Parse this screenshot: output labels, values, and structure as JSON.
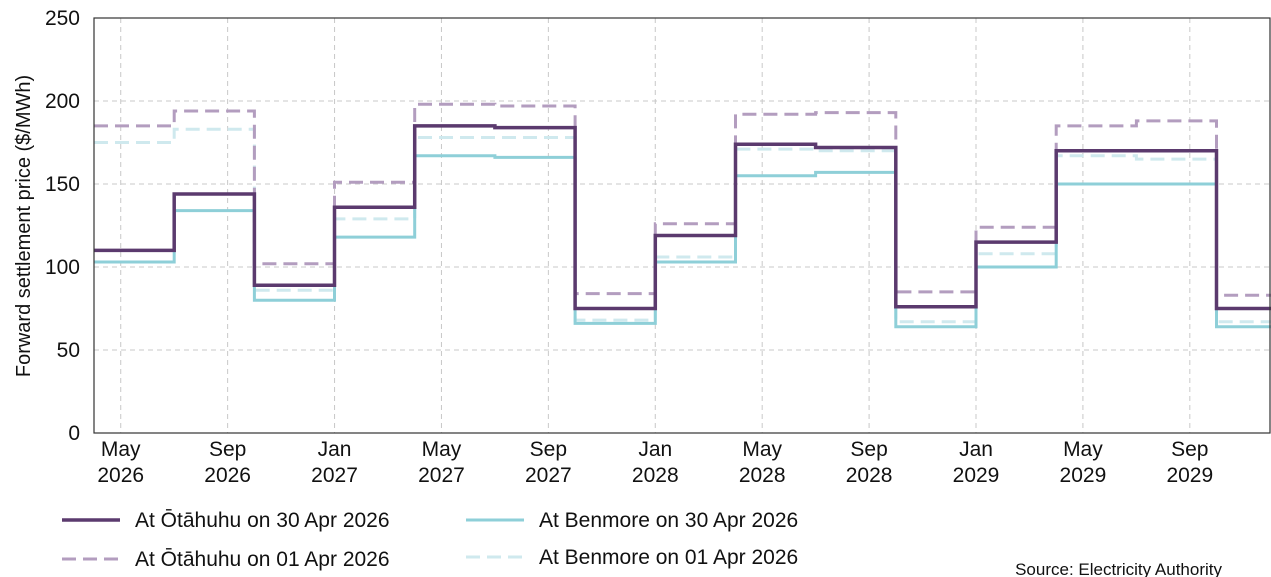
{
  "chart_data": {
    "type": "line",
    "step": true,
    "title": "",
    "xlabel": "",
    "ylabel": "Forward settlement price ($/MWh)",
    "ylim": [
      0,
      250
    ],
    "yticks": [
      0,
      50,
      100,
      150,
      200,
      250
    ],
    "x_range": [
      "2026-04",
      "2029-12"
    ],
    "x_ticks": [
      {
        "month": "2026-05",
        "line1": "May",
        "line2": "2026"
      },
      {
        "month": "2026-09",
        "line1": "Sep",
        "line2": "2026"
      },
      {
        "month": "2027-01",
        "line1": "Jan",
        "line2": "2027"
      },
      {
        "month": "2027-05",
        "line1": "May",
        "line2": "2027"
      },
      {
        "month": "2027-09",
        "line1": "Sep",
        "line2": "2027"
      },
      {
        "month": "2028-01",
        "line1": "Jan",
        "line2": "2028"
      },
      {
        "month": "2028-05",
        "line1": "May",
        "line2": "2028"
      },
      {
        "month": "2028-09",
        "line1": "Sep",
        "line2": "2028"
      },
      {
        "month": "2029-01",
        "line1": "Jan",
        "line2": "2029"
      },
      {
        "month": "2029-05",
        "line1": "May",
        "line2": "2029"
      },
      {
        "month": "2029-09",
        "line1": "Sep",
        "line2": "2029"
      }
    ],
    "quarters": [
      "2026-04",
      "2026-07",
      "2026-10",
      "2027-01",
      "2027-04",
      "2027-07",
      "2027-10",
      "2028-01",
      "2028-04",
      "2028-07",
      "2028-10",
      "2029-01",
      "2029-04",
      "2029-07",
      "2029-10"
    ],
    "grid": true,
    "legend_position": "bottom",
    "series": [
      {
        "name": "At Ōtāhuhu on 30 Apr 2026",
        "color": "#5b3a6e",
        "dash": "solid",
        "width": 3.5,
        "values": [
          110,
          144,
          89,
          136,
          185,
          184,
          75,
          119,
          174,
          172,
          76,
          115,
          170,
          170,
          75
        ]
      },
      {
        "name": "At Ōtāhuhu on 01 Apr 2026",
        "color": "#b39dbf",
        "dash": "dashed",
        "width": 3,
        "values": [
          185,
          194,
          102,
          151,
          198,
          197,
          84,
          126,
          192,
          193,
          85,
          124,
          185,
          188,
          83
        ]
      },
      {
        "name": "At Benmore on 30 Apr 2026",
        "color": "#8ecfd8",
        "dash": "solid",
        "width": 3,
        "values": [
          103,
          134,
          80,
          118,
          167,
          166,
          66,
          103,
          155,
          157,
          64,
          100,
          150,
          150,
          64
        ]
      },
      {
        "name": "At Benmore on 01 Apr 2026",
        "color": "#cfe9ee",
        "dash": "dashed",
        "width": 3,
        "values": [
          175,
          183,
          86,
          129,
          178,
          178,
          68,
          106,
          171,
          170,
          67,
          108,
          167,
          165,
          67
        ]
      }
    ],
    "source": "Source: Electricity Authority"
  }
}
